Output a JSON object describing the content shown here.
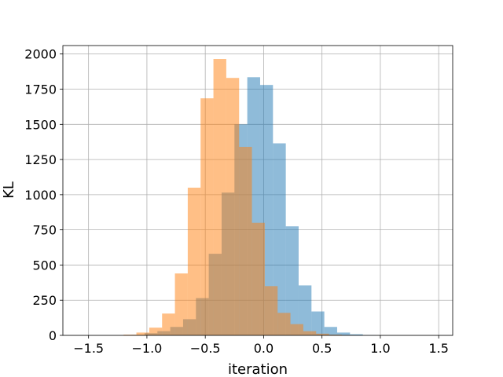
{
  "chart_data": {
    "type": "histogram",
    "xlabel": "iteration",
    "ylabel": "KL",
    "xlim": [
      -1.72,
      1.62
    ],
    "ylim": [
      0,
      2060
    ],
    "grid": true,
    "x_ticks": [
      -1.5,
      -1.0,
      -0.5,
      0.0,
      0.5,
      1.0,
      1.5
    ],
    "x_tick_labels": [
      "−1.5",
      "−1.0",
      "−0.5",
      "0.0",
      "0.5",
      "1.0",
      "1.5"
    ],
    "y_ticks": [
      0,
      250,
      500,
      750,
      1000,
      1250,
      1500,
      1750,
      2000
    ],
    "y_tick_labels": [
      "0",
      "250",
      "500",
      "750",
      "1000",
      "1250",
      "1500",
      "1750",
      "2000"
    ],
    "series": [
      {
        "color": "#1f77b4",
        "opacity": 0.5,
        "bin_edges": [
          -1.13,
          -1.02,
          -0.91,
          -0.8,
          -0.69,
          -0.58,
          -0.47,
          -0.36,
          -0.25,
          -0.14,
          -0.03,
          0.08,
          0.19,
          0.3,
          0.41,
          0.52,
          0.63,
          0.74,
          0.85,
          0.96
        ],
        "counts": [
          3,
          15,
          30,
          60,
          115,
          265,
          580,
          1015,
          1500,
          1835,
          1780,
          1365,
          775,
          355,
          170,
          60,
          20,
          8,
          2
        ]
      },
      {
        "color": "#ff7f0e",
        "opacity": 0.5,
        "bin_edges": [
          -1.2,
          -1.09,
          -0.98,
          -0.87,
          -0.76,
          -0.65,
          -0.54,
          -0.43,
          -0.32,
          -0.21,
          -0.1,
          0.01,
          0.12,
          0.23,
          0.34,
          0.45,
          0.56,
          0.67,
          0.78
        ],
        "counts": [
          5,
          20,
          55,
          155,
          440,
          1050,
          1685,
          1965,
          1830,
          1340,
          800,
          350,
          160,
          80,
          30,
          12,
          5,
          2
        ]
      }
    ]
  }
}
